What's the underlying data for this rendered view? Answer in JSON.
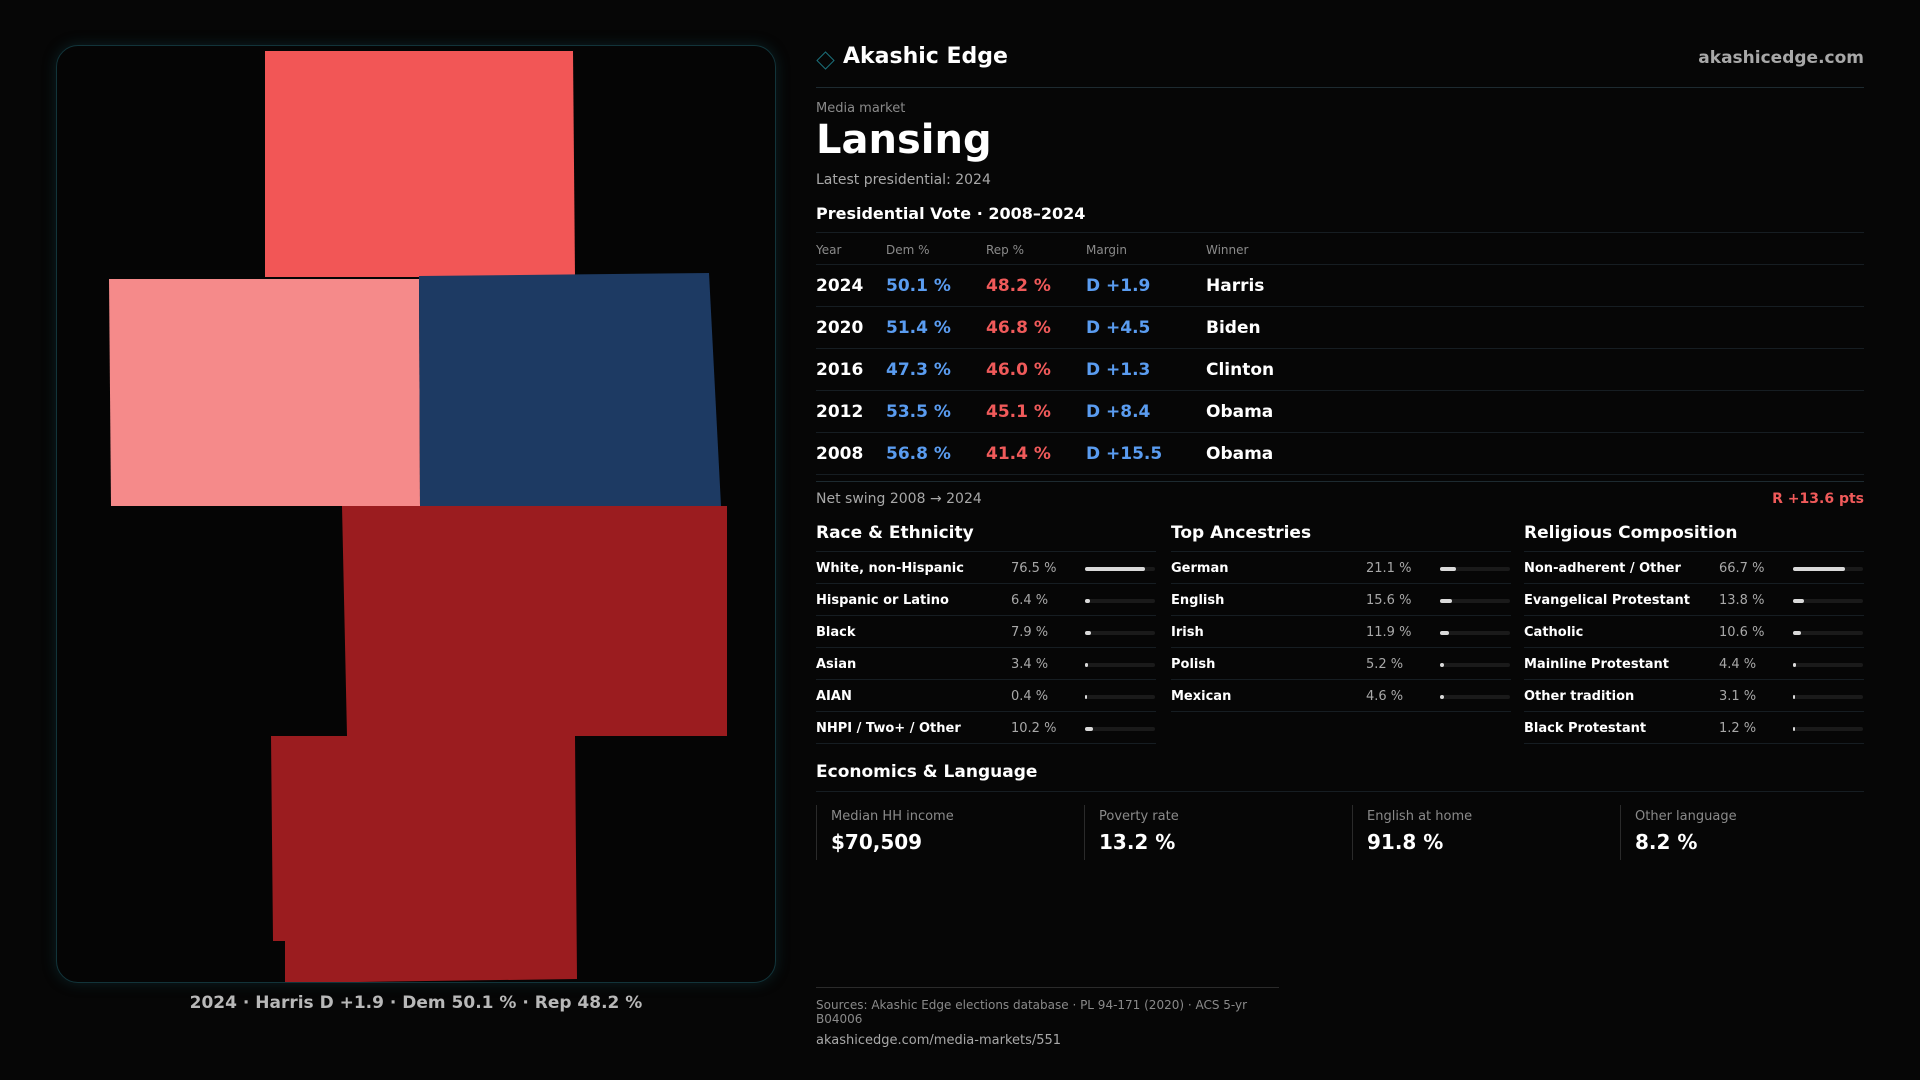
{
  "brand": {
    "name": "Akashic Edge",
    "url": "akashicedge.com",
    "icon": "diamond-outline-icon"
  },
  "market": {
    "kicker": "Media market",
    "name": "Lansing",
    "latest": "Latest presidential: 2024"
  },
  "map": {
    "caption": "2024 · Harris D +1.9 · Dem 50.1 % · Rep 48.2 %",
    "colors": {
      "light_red": "#f25656",
      "pink": "#f58a8a",
      "navy": "#1d3a63",
      "dark_red": "#9b1c1f"
    }
  },
  "votes": {
    "title": "Presidential Vote · 2008–2024",
    "headers": {
      "year": "Year",
      "dem": "Dem %",
      "rep": "Rep %",
      "margin": "Margin",
      "winner": "Winner"
    },
    "rows": [
      {
        "year": "2024",
        "dem": "50.1 %",
        "rep": "48.2 %",
        "margin": "D +1.9",
        "winner": "Harris"
      },
      {
        "year": "2020",
        "dem": "51.4 %",
        "rep": "46.8 %",
        "margin": "D +4.5",
        "winner": "Biden"
      },
      {
        "year": "2016",
        "dem": "47.3 %",
        "rep": "46.0 %",
        "margin": "D +1.3",
        "winner": "Clinton"
      },
      {
        "year": "2012",
        "dem": "53.5 %",
        "rep": "45.1 %",
        "margin": "D +8.4",
        "winner": "Obama"
      },
      {
        "year": "2008",
        "dem": "56.8 %",
        "rep": "41.4 %",
        "margin": "D +15.5",
        "winner": "Obama"
      }
    ],
    "swing_label": "Net swing 2008 → 2024",
    "swing_value": "R +13.6 pts"
  },
  "race": {
    "title": "Race & Ethnicity",
    "rows": [
      {
        "label": "White, non-Hispanic",
        "value": "76.5 %",
        "share": 0.765
      },
      {
        "label": "Hispanic or Latino",
        "value": "6.4 %",
        "share": 0.064
      },
      {
        "label": "Black",
        "value": "7.9 %",
        "share": 0.079
      },
      {
        "label": "Asian",
        "value": "3.4 %",
        "share": 0.034
      },
      {
        "label": "AIAN",
        "value": "0.4 %",
        "share": 0.004
      },
      {
        "label": "NHPI / Two+ / Other",
        "value": "10.2 %",
        "share": 0.102
      }
    ]
  },
  "ancestry": {
    "title": "Top Ancestries",
    "rows": [
      {
        "label": "German",
        "value": "21.1 %",
        "share": 0.211
      },
      {
        "label": "English",
        "value": "15.6 %",
        "share": 0.156
      },
      {
        "label": "Irish",
        "value": "11.9 %",
        "share": 0.119
      },
      {
        "label": "Polish",
        "value": "5.2 %",
        "share": 0.052
      },
      {
        "label": "Mexican",
        "value": "4.6 %",
        "share": 0.046
      }
    ]
  },
  "religion": {
    "title": "Religious Composition",
    "rows": [
      {
        "label": "Non-adherent / Other",
        "value": "66.7 %",
        "share": 0.667
      },
      {
        "label": "Evangelical Protestant",
        "value": "13.8 %",
        "share": 0.138
      },
      {
        "label": "Catholic",
        "value": "10.6 %",
        "share": 0.106
      },
      {
        "label": "Mainline Protestant",
        "value": "4.4 %",
        "share": 0.044
      },
      {
        "label": "Other tradition",
        "value": "3.1 %",
        "share": 0.031
      },
      {
        "label": "Black Protestant",
        "value": "1.2 %",
        "share": 0.012
      }
    ]
  },
  "economics": {
    "title": "Economics & Language",
    "cards": [
      {
        "label": "Median HH income",
        "value": "$70,509"
      },
      {
        "label": "Poverty rate",
        "value": "13.2 %"
      },
      {
        "label": "English at home",
        "value": "91.8 %"
      },
      {
        "label": "Other language",
        "value": "8.2 %"
      }
    ]
  },
  "sources": {
    "line1": "Sources: Akashic Edge elections database · PL 94-171 (2020) · ACS 5-yr B04006",
    "line2": "akashicedge.com/media-markets/551"
  }
}
